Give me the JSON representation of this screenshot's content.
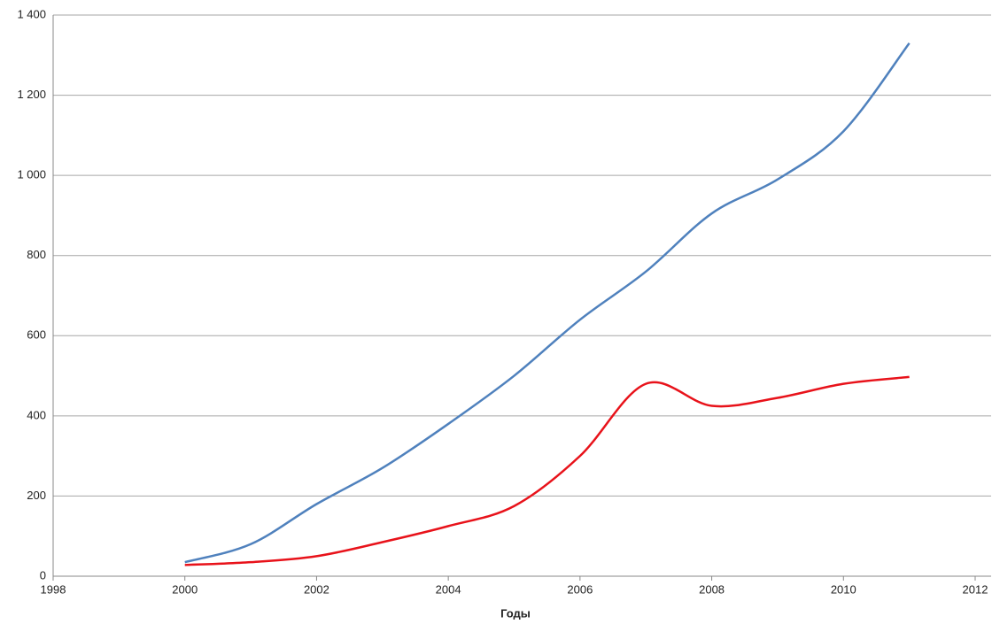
{
  "chart_data": {
    "type": "line",
    "x_label": "Годы",
    "x": [
      2000,
      2001,
      2002,
      2003,
      2004,
      2005,
      2006,
      2007,
      2008,
      2009,
      2010,
      2011
    ],
    "series": [
      {
        "color": "#4f81bd",
        "values": [
          35,
          80,
          180,
          270,
          380,
          500,
          640,
          760,
          905,
          990,
          1110,
          1330
        ]
      },
      {
        "color": "#e8121a",
        "values": [
          28,
          35,
          50,
          85,
          125,
          175,
          300,
          480,
          425,
          445,
          480,
          497
        ]
      }
    ],
    "xlim": [
      1998,
      2012
    ],
    "xticks": [
      1998,
      2000,
      2002,
      2004,
      2006,
      2008,
      2010,
      2012
    ],
    "ylim": [
      0,
      1400
    ],
    "yticks": [
      0,
      200,
      400,
      600,
      800,
      {
        "value": 1000,
        "label": "1 000"
      },
      {
        "value": 1200,
        "label": "1 200"
      },
      {
        "value": 1400,
        "label": "1 400"
      }
    ],
    "grid": true
  }
}
